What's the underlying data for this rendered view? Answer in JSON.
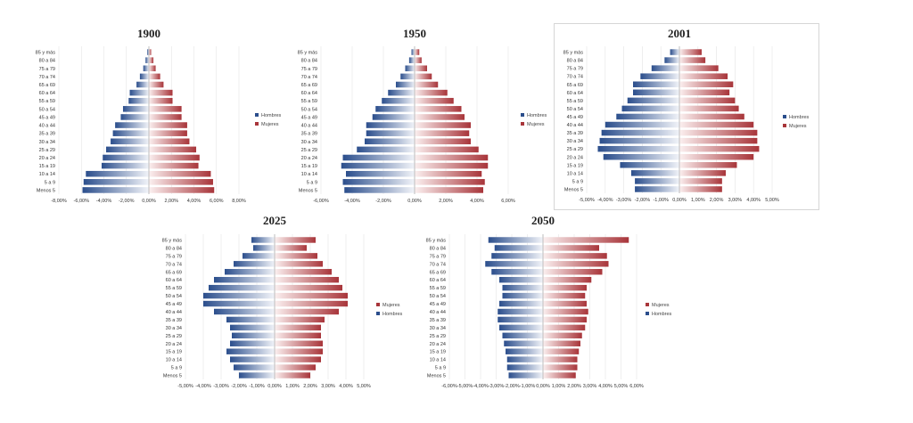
{
  "colors": {
    "male_dark": "#2b4e8c",
    "male_light": "#f2f4f9",
    "female_dark": "#a8353a",
    "female_light": "#fbf0f0"
  },
  "chart_data": [
    {
      "type": "bar",
      "title": "1900",
      "orientation": "horizontal-population-pyramid",
      "categories": [
        "Menos 5",
        "5 a 9",
        "10 a 14",
        "15 a 19",
        "20 a 24",
        "25 a 29",
        "30 a 34",
        "35 a 39",
        "40 a 44",
        "45 a 49",
        "50 a 54",
        "55 a 59",
        "60 a 64",
        "65 a 69",
        "70 a 74",
        "75 a 79",
        "80 a 84",
        "85 y más"
      ],
      "series": [
        {
          "name": "Hombres",
          "values": [
            -5.9,
            -5.8,
            -5.6,
            -4.2,
            -4.1,
            -3.8,
            -3.4,
            -3.2,
            -3.0,
            -2.5,
            -2.3,
            -1.8,
            -1.7,
            -1.1,
            -0.8,
            -0.5,
            -0.3,
            -0.15
          ]
        },
        {
          "name": "Mujeres",
          "values": [
            5.8,
            5.7,
            5.5,
            4.4,
            4.5,
            4.2,
            3.6,
            3.4,
            3.4,
            2.9,
            2.9,
            2.1,
            2.1,
            1.3,
            1.0,
            0.6,
            0.4,
            0.2
          ]
        }
      ],
      "legend": [
        "Hombres",
        "Mujeres"
      ],
      "xlim": [
        -8,
        8
      ],
      "xticks": [
        "-8,00%",
        "-6,00%",
        "-4,00%",
        "-2,00%",
        "0,00%",
        "2,00%",
        "4,00%",
        "6,00%",
        "8,00%"
      ]
    },
    {
      "type": "bar",
      "title": "1950",
      "orientation": "horizontal-population-pyramid",
      "categories": [
        "Menos 5",
        "5 a 9",
        "10 a 14",
        "15 a 19",
        "20 a 24",
        "25 a 29",
        "30 a 34",
        "35 a 39",
        "40 a 44",
        "45 a 49",
        "50 a 54",
        "55 a 59",
        "60 a 64",
        "65 a 69",
        "70 a 74",
        "75 a 79",
        "80 a 84",
        "85 y más"
      ],
      "series": [
        {
          "name": "Hombres",
          "values": [
            -4.5,
            -4.6,
            -4.4,
            -4.7,
            -4.6,
            -3.7,
            -3.2,
            -3.1,
            -3.1,
            -2.7,
            -2.5,
            -2.1,
            -1.7,
            -1.2,
            -0.9,
            -0.6,
            -0.35,
            -0.2
          ]
        },
        {
          "name": "Mujeres",
          "values": [
            4.4,
            4.5,
            4.3,
            4.7,
            4.7,
            4.1,
            3.6,
            3.5,
            3.6,
            3.2,
            3.0,
            2.5,
            2.1,
            1.5,
            1.1,
            0.8,
            0.45,
            0.3
          ]
        }
      ],
      "legend": [
        "Hombres",
        "Mujeres"
      ],
      "xlim": [
        -6,
        6
      ],
      "xticks": [
        "-6,00%",
        "-4,00%",
        "-2,00%",
        "0,00%",
        "2,00%",
        "4,00%",
        "6,00%"
      ]
    },
    {
      "type": "bar",
      "title": "2001",
      "orientation": "horizontal-population-pyramid",
      "categories": [
        "Menos 5",
        "5 a 9",
        "10 a 14",
        "15 a 19",
        "20 a 24",
        "25 a 29",
        "30 a 34",
        "35 a 39",
        "40 a 44",
        "45 a 49",
        "50 a 54",
        "55 a 59",
        "60 a 64",
        "65 a 69",
        "70 a 74",
        "75 a 79",
        "80 a 84",
        "85 y más"
      ],
      "series": [
        {
          "name": "Hombres",
          "values": [
            -2.4,
            -2.4,
            -2.6,
            -3.2,
            -4.1,
            -4.4,
            -4.3,
            -4.2,
            -4.0,
            -3.4,
            -3.1,
            -2.8,
            -2.5,
            -2.5,
            -2.1,
            -1.5,
            -0.8,
            -0.5
          ]
        },
        {
          "name": "Mujeres",
          "values": [
            2.3,
            2.3,
            2.5,
            3.1,
            4.0,
            4.3,
            4.2,
            4.2,
            4.0,
            3.5,
            3.2,
            3.0,
            2.7,
            2.9,
            2.6,
            2.1,
            1.4,
            1.2
          ]
        }
      ],
      "legend": [
        "Hombres",
        "Mujeres"
      ],
      "xlim": [
        -5,
        5
      ],
      "xticks": [
        "-5,00%",
        "-4,00%",
        "-3,00%",
        "-2,00%",
        "-1,00%",
        "0,00%",
        "1,00%",
        "2,00%",
        "3,00%",
        "4,00%",
        "5,00%"
      ]
    },
    {
      "type": "bar",
      "title": "2025",
      "orientation": "horizontal-population-pyramid",
      "categories": [
        "Menos 5",
        "5 a 9",
        "10 a 14",
        "15 a 19",
        "20 a 24",
        "25 a 29",
        "30 a 34",
        "35 a 39",
        "40 a 44",
        "45 a 49",
        "50 a 54",
        "55 a 59",
        "60 a 64",
        "65 a 69",
        "70 a 74",
        "75 a 79",
        "80 a 84",
        "85 y más"
      ],
      "series": [
        {
          "name": "Hombres",
          "values": [
            -2.0,
            -2.3,
            -2.5,
            -2.7,
            -2.5,
            -2.4,
            -2.5,
            -2.7,
            -3.4,
            -4.0,
            -4.0,
            -3.7,
            -3.4,
            -2.8,
            -2.3,
            -1.8,
            -1.2,
            -1.3
          ]
        },
        {
          "name": "Mujeres",
          "values": [
            2.0,
            2.3,
            2.6,
            2.7,
            2.7,
            2.6,
            2.6,
            2.8,
            3.6,
            4.1,
            4.1,
            3.8,
            3.6,
            3.2,
            2.7,
            2.4,
            1.8,
            2.3
          ]
        }
      ],
      "legend": [
        "Mujeres",
        "Hombres"
      ],
      "xlim": [
        -5,
        5
      ],
      "xticks": [
        "-5,00%",
        "-4,00%",
        "-3,00%",
        "-2,00%",
        "-1,00%",
        "0,00%",
        "1,00%",
        "2,00%",
        "3,00%",
        "4,00%",
        "5,00%"
      ]
    },
    {
      "type": "bar",
      "title": "2050",
      "orientation": "horizontal-population-pyramid",
      "categories": [
        "Menos 5",
        "5 a 9",
        "10 a 14",
        "15 a 19",
        "20 a 24",
        "25 a 29",
        "30 a 34",
        "35 a 39",
        "40 a 44",
        "45 a 49",
        "50 a 54",
        "55 a 59",
        "60 a 64",
        "65 a 69",
        "70 a 74",
        "75 a 79",
        "80 a 84",
        "85 y más"
      ],
      "series": [
        {
          "name": "Hombres",
          "values": [
            -2.2,
            -2.3,
            -2.3,
            -2.4,
            -2.5,
            -2.6,
            -2.8,
            -2.9,
            -2.9,
            -2.8,
            -2.6,
            -2.6,
            -2.8,
            -3.3,
            -3.7,
            -3.3,
            -3.1,
            -3.5
          ]
        },
        {
          "name": "Mujeres",
          "values": [
            2.1,
            2.2,
            2.2,
            2.3,
            2.4,
            2.5,
            2.7,
            2.8,
            2.9,
            2.8,
            2.7,
            2.8,
            3.1,
            3.8,
            4.2,
            4.1,
            3.6,
            5.5
          ]
        }
      ],
      "legend": [
        "Mujeres",
        "Hombres"
      ],
      "xlim": [
        -6,
        6
      ],
      "xticks": [
        "-6,00%",
        "-5,00%",
        "-4,00%",
        "-3,00%",
        "-2,00%",
        "-1,00%",
        "0,00%",
        "1,00%",
        "2,00%",
        "3,00%",
        "4,00%",
        "5,00%",
        "6,00%"
      ]
    }
  ]
}
